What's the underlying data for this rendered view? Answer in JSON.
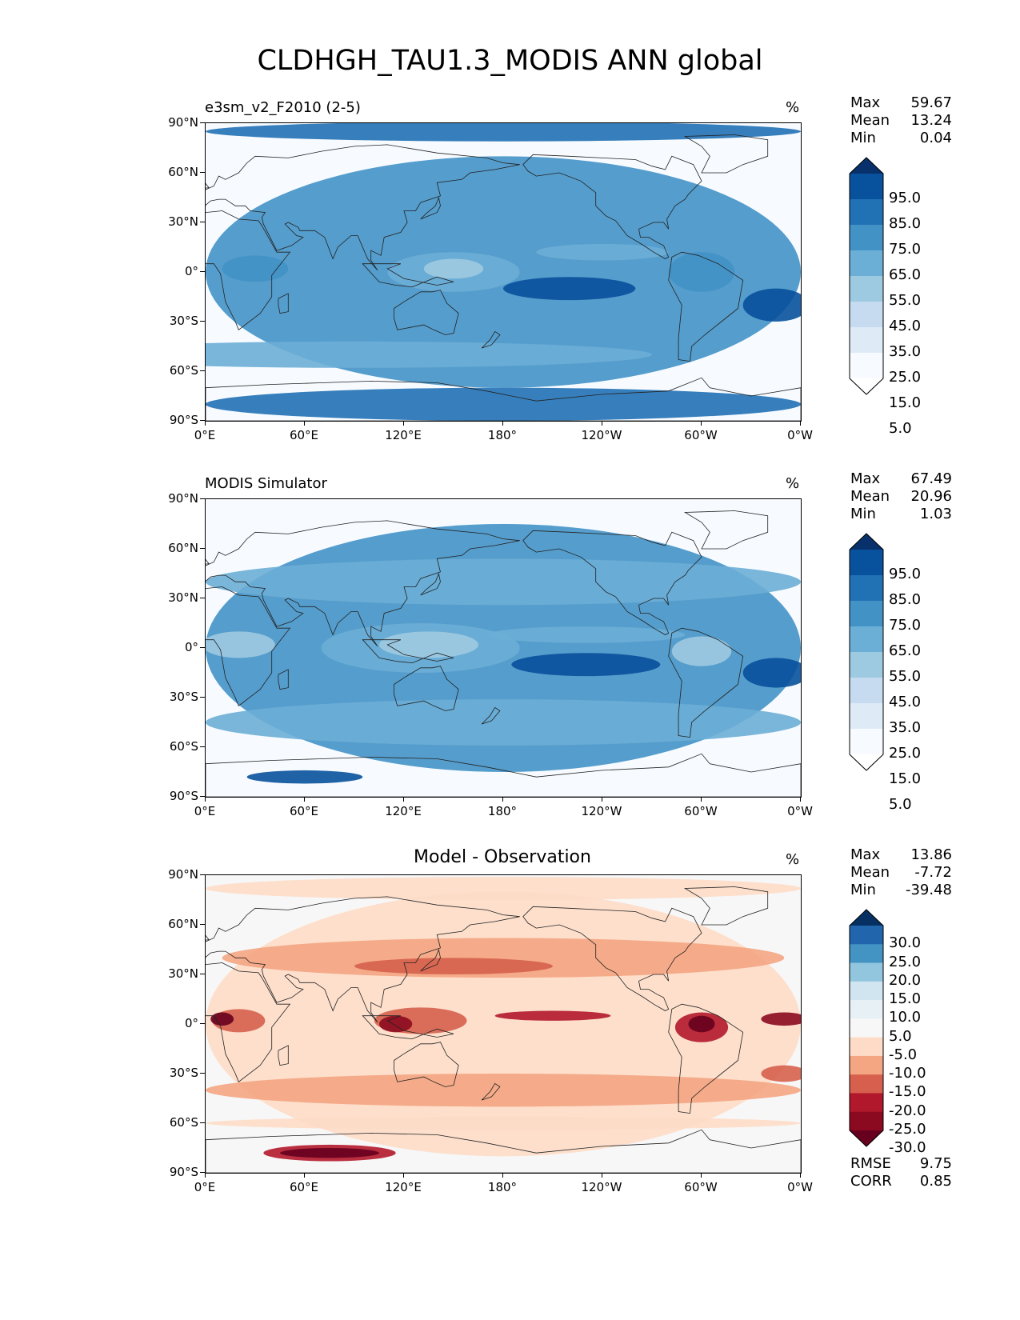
{
  "figure": {
    "title": "CLDHGH_TAU1.3_MODIS ANN global"
  },
  "axes": {
    "lat_ticks": [
      "90°N",
      "60°N",
      "30°N",
      "0°",
      "30°S",
      "60°S",
      "90°S"
    ],
    "lon_ticks": [
      "0°E",
      "60°E",
      "120°E",
      "180°",
      "120°W",
      "60°W",
      "0°W"
    ]
  },
  "panels": [
    {
      "title": "e3sm_v2_F2010 (2-5)",
      "units": "%",
      "stats": {
        "max_label": "Max",
        "max": "59.67",
        "mean_label": "Mean",
        "mean": "13.24",
        "min_label": "Min",
        "min": "0.04"
      },
      "colorbar": {
        "labels": [
          "95.0",
          "85.0",
          "75.0",
          "65.0",
          "55.0",
          "45.0",
          "35.0",
          "25.0",
          "15.0",
          "5.0"
        ],
        "colors": [
          "#08306b",
          "#08519c",
          "#2171b5",
          "#4292c6",
          "#6baed6",
          "#9ecae1",
          "#c6dbef",
          "#deebf7",
          "#f7fbff",
          "#ffffff"
        ]
      }
    },
    {
      "title": "MODIS Simulator",
      "units": "%",
      "stats": {
        "max_label": "Max",
        "max": "67.49",
        "mean_label": "Mean",
        "mean": "20.96",
        "min_label": "Min",
        "min": "1.03"
      },
      "colorbar": {
        "labels": [
          "95.0",
          "85.0",
          "75.0",
          "65.0",
          "55.0",
          "45.0",
          "35.0",
          "25.0",
          "15.0",
          "5.0"
        ],
        "colors": [
          "#08306b",
          "#08519c",
          "#2171b5",
          "#4292c6",
          "#6baed6",
          "#9ecae1",
          "#c6dbef",
          "#deebf7",
          "#f7fbff",
          "#ffffff"
        ]
      }
    },
    {
      "title": "Model - Observation",
      "units": "%",
      "stats": {
        "max_label": "Max",
        "max": "13.86",
        "mean_label": "Mean",
        "mean": "-7.72",
        "min_label": "Min",
        "min": "-39.48"
      },
      "colorbar": {
        "labels": [
          "30.0",
          "25.0",
          "20.0",
          "15.0",
          "10.0",
          "5.0",
          "-5.0",
          "-10.0",
          "-15.0",
          "-20.0",
          "-25.0",
          "-30.0"
        ],
        "colors": [
          "#053061",
          "#2166ac",
          "#4393c3",
          "#92c5de",
          "#d1e5f0",
          "#e7f0f5",
          "#f7f7f7",
          "#fddbc7",
          "#f4a582",
          "#d6604d",
          "#b2182b",
          "#8b0a1f",
          "#67001f"
        ]
      },
      "metrics": {
        "rmse_label": "RMSE",
        "rmse": "9.75",
        "corr_label": "CORR",
        "corr": "0.85"
      }
    }
  ]
}
